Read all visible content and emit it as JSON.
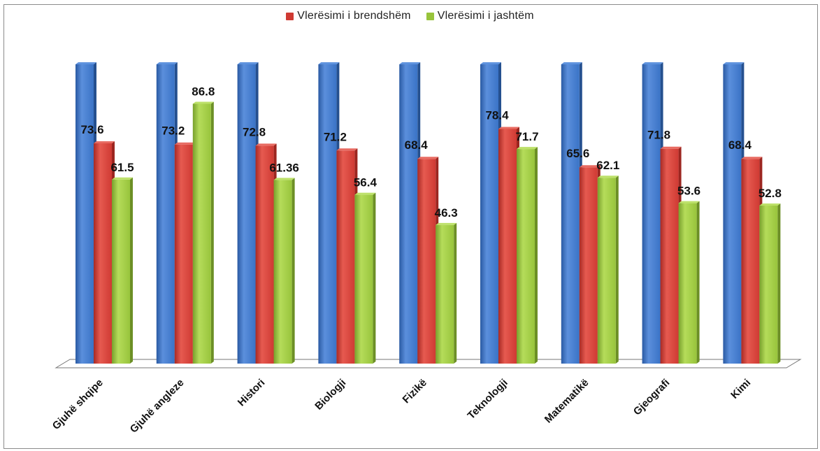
{
  "chart_data": {
    "type": "bar",
    "categories": [
      "Gjuhë shqipe",
      "Gjuhë angleze",
      "Histori",
      "Biologji",
      "Fizikë",
      "Teknologji",
      "Matematikë",
      "Gjeografi",
      "Kimi"
    ],
    "series": [
      {
        "values": [
          100,
          100,
          100,
          100,
          100,
          100,
          100,
          100,
          100
        ],
        "color": "#3a73c6"
      },
      {
        "name": "Vlerësimi i brendshëm",
        "values": [
          73.6,
          73.2,
          72.8,
          71.2,
          68.4,
          78.4,
          65.6,
          71.8,
          68.4
        ],
        "labels": [
          "73.6",
          "73.2",
          "72.8",
          "71.2",
          "68.4",
          "78.4",
          "65.6",
          "71.8",
          "68.4"
        ],
        "color": "#cf3a33"
      },
      {
        "name": "Vlerësimi i jashtëm",
        "values": [
          61.5,
          86.8,
          61.36,
          56.4,
          46.3,
          71.7,
          62.1,
          53.6,
          52.8
        ],
        "labels": [
          "61.5",
          "86.8",
          "61.36",
          "56.4",
          "46.3",
          "71.7",
          "62.1",
          "53.6",
          "52.8"
        ],
        "color": "#98c43c"
      }
    ],
    "ylim": [
      0,
      100
    ],
    "legend_position": "top",
    "grid": false
  }
}
